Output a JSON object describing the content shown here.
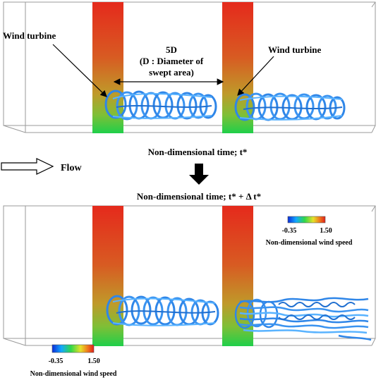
{
  "top_panel": {
    "left_label": "Wind turbine",
    "right_label": "Wind turbine",
    "spacing_label": "5D",
    "spacing_note_line1": "(D : Diameter of",
    "spacing_note_line2": "swept area)",
    "caption": "Non-dimensional time; t*"
  },
  "flow": {
    "label": "Flow"
  },
  "bottom_panel": {
    "caption": "Non-dimensional time; t* + Δ t*",
    "colorbar_inset": {
      "min_label": "-0.35",
      "max_label": "1.50",
      "title": "Non-dimensional wind speed"
    },
    "colorbar_corner": {
      "min_label": "-0.35",
      "max_label": "1.50",
      "title": "Non-dimensional wind speed"
    }
  },
  "colors": {
    "high_speed": "#e82a1f",
    "mid_speed": "#c8a228",
    "low_speed": "#22c84a",
    "vortex": "#2f86e8",
    "vortex_light": "#59b3ff"
  }
}
